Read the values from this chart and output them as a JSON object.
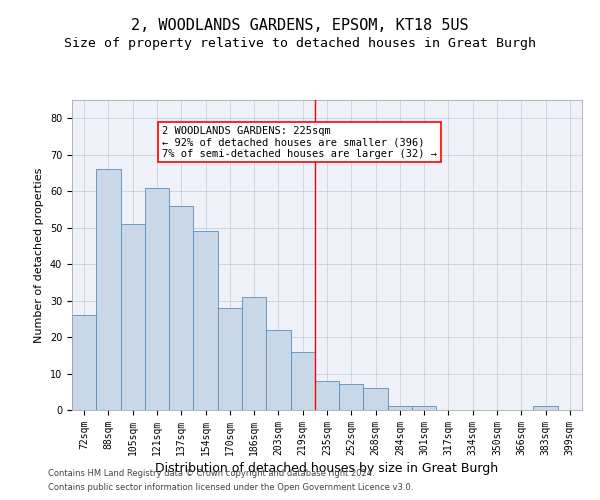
{
  "title1": "2, WOODLANDS GARDENS, EPSOM, KT18 5US",
  "title2": "Size of property relative to detached houses in Great Burgh",
  "xlabel": "Distribution of detached houses by size in Great Burgh",
  "ylabel": "Number of detached properties",
  "categories": [
    "72sqm",
    "88sqm",
    "105sqm",
    "121sqm",
    "137sqm",
    "154sqm",
    "170sqm",
    "186sqm",
    "203sqm",
    "219sqm",
    "235sqm",
    "252sqm",
    "268sqm",
    "284sqm",
    "301sqm",
    "317sqm",
    "334sqm",
    "350sqm",
    "366sqm",
    "383sqm",
    "399sqm"
  ],
  "values": [
    26,
    66,
    51,
    61,
    56,
    49,
    28,
    31,
    22,
    16,
    8,
    7,
    6,
    1,
    1,
    0,
    0,
    0,
    0,
    1,
    0
  ],
  "bar_color": "#c8d8e8",
  "bar_edge_color": "#5b8db8",
  "ylim": [
    0,
    85
  ],
  "yticks": [
    0,
    10,
    20,
    30,
    40,
    50,
    60,
    70,
    80
  ],
  "red_line_x": 9.5,
  "annotation_line1": "2 WOODLANDS GARDENS: 225sqm",
  "annotation_line2": "← 92% of detached houses are smaller (396)",
  "annotation_line3": "7% of semi-detached houses are larger (32) →",
  "footer1": "Contains HM Land Registry data © Crown copyright and database right 2024.",
  "footer2": "Contains public sector information licensed under the Open Government Licence v3.0.",
  "background_color": "#eef2f8",
  "grid_color": "#c8d0dc",
  "title1_fontsize": 11,
  "title2_fontsize": 9.5,
  "xlabel_fontsize": 9,
  "ylabel_fontsize": 8,
  "tick_fontsize": 7,
  "annotation_fontsize": 7.5,
  "footer_fontsize": 6
}
